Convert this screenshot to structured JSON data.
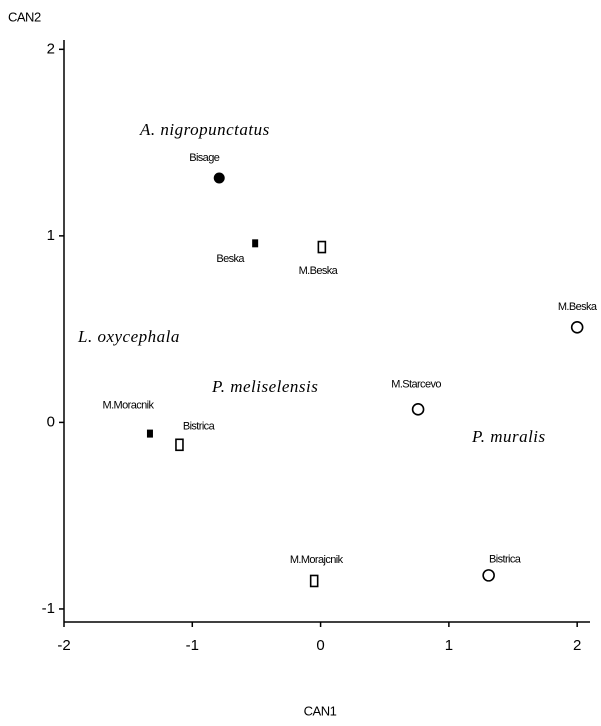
{
  "chart_data": {
    "type": "scatter",
    "x_label": "CAN1",
    "y_label": "CAN2",
    "xlim": [
      -2,
      2.1
    ],
    "ylim": [
      -1.07,
      2.05
    ],
    "xticks": [
      -2,
      -1,
      0,
      1,
      2
    ],
    "yticks": [
      -1,
      0,
      1,
      2
    ],
    "series": [
      {
        "name": "A. nigropunctatus",
        "color": "#000000",
        "marker": "filled-circle",
        "x": [
          -0.79
        ],
        "values": [
          1.31
        ],
        "point_labels": [
          "Bisage"
        ]
      },
      {
        "name": "L. oxycephala",
        "color": "#000000",
        "marker": "filled-square",
        "x": [
          -0.51,
          -1.33
        ],
        "values": [
          0.96,
          -0.06
        ],
        "point_labels": [
          "Beska",
          "M.Moracnik"
        ]
      },
      {
        "name": "P. meliselensis",
        "color": "#000000",
        "marker": "open-square",
        "x": [
          0.01,
          -1.1,
          -0.05
        ],
        "values": [
          0.94,
          -0.12,
          -0.85
        ],
        "point_labels": [
          "M.Beska",
          "Bistrica",
          "M.Morajcnik"
        ]
      },
      {
        "name": "P. muralis",
        "color": "#000000",
        "marker": "open-circle",
        "x": [
          2.0,
          0.76,
          1.31
        ],
        "values": [
          0.51,
          0.07,
          -0.82
        ],
        "point_labels": [
          "M.Beska",
          "M.Starcevo",
          "Bistrica"
        ]
      }
    ]
  }
}
